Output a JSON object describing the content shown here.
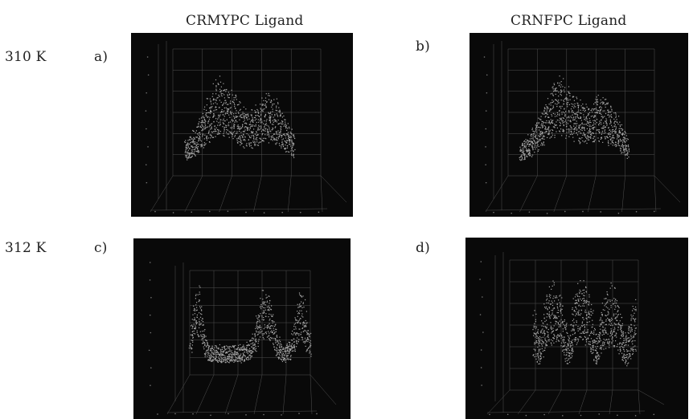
{
  "columns": [
    "CRMYPC Ligand",
    "CRNFPC Ligand"
  ],
  "rows": [
    "310 K",
    "312 K"
  ],
  "panels": [
    {
      "label": "a)",
      "ligand": "CRMYPC Ligand",
      "temperature": "310 K"
    },
    {
      "label": "b)",
      "ligand": "CRNFPC Ligand",
      "temperature": "310 K"
    },
    {
      "label": "c)",
      "ligand": "CRMYPC Ligand",
      "temperature": "312 K"
    },
    {
      "label": "d)",
      "ligand": "CRNFPC Ligand",
      "temperature": "312 K"
    }
  ],
  "colors": {
    "plot_background": "#090909",
    "trace": "#a6a6a6",
    "grid": "#6a6a6a"
  }
}
